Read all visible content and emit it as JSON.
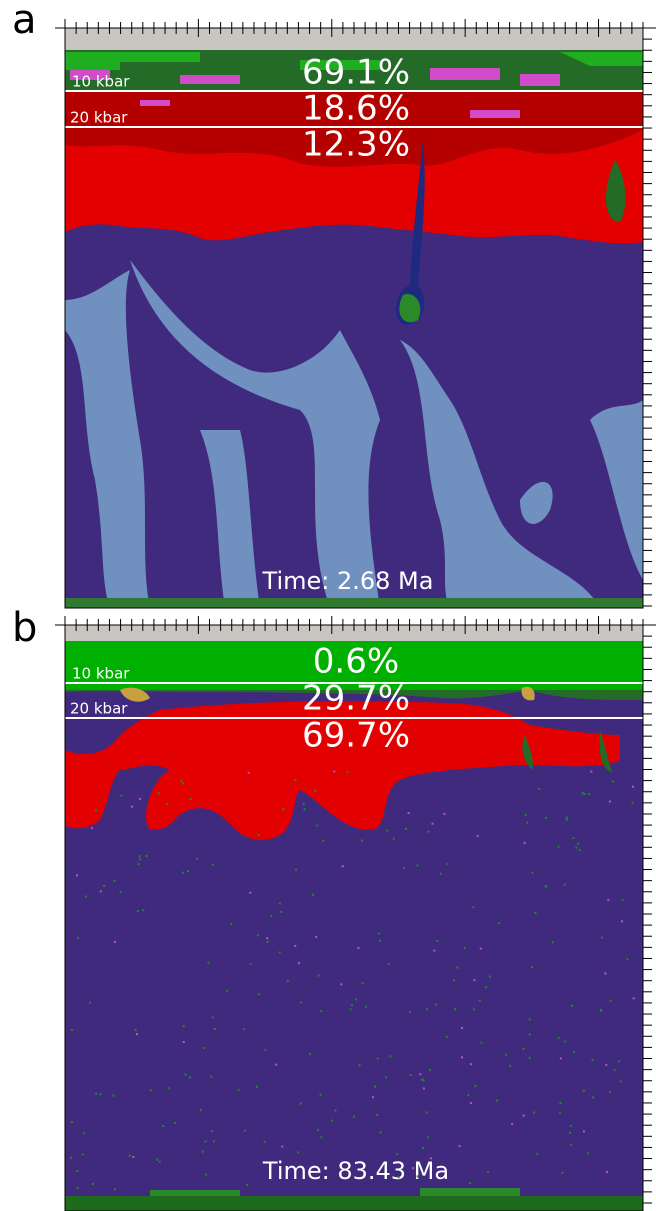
{
  "panels": [
    {
      "label": "a",
      "pressures": [
        "10 kbar",
        "20 kbar"
      ],
      "percentages": [
        "69.1%",
        "18.6%",
        "12.3%"
      ],
      "time": "Time: 2.68 Ma"
    },
    {
      "label": "b",
      "pressures": [
        "10 kbar",
        "20 kbar"
      ],
      "percentages": [
        "0.6%",
        "29.7%",
        "69.7%"
      ],
      "time": "Time: 83.43 Ma"
    }
  ]
}
